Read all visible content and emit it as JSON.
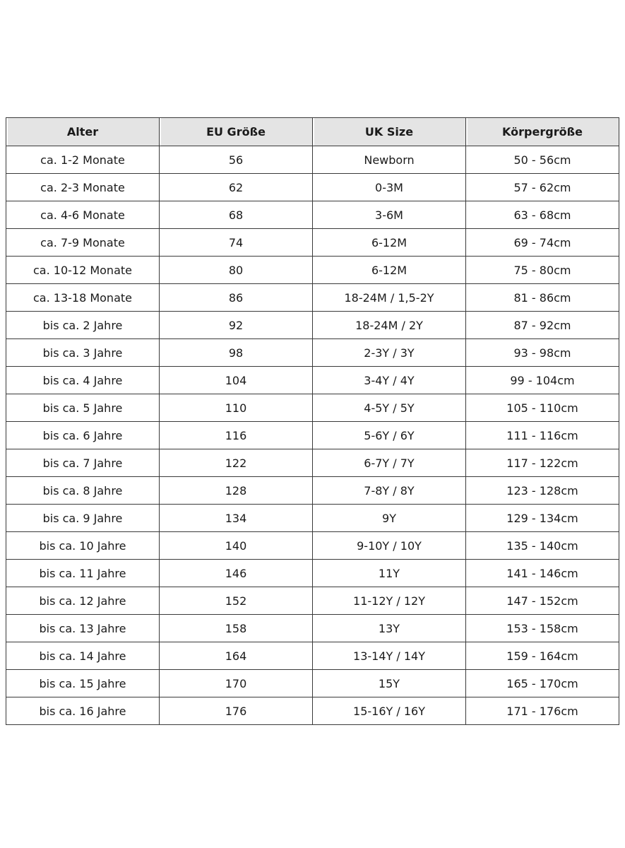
{
  "headers": [
    "Alter",
    "EU Größe",
    "UK Size",
    "Körpergröße"
  ],
  "rows": [
    [
      "ca. 1-2 Monate",
      "56",
      "Newborn",
      "50 - 56cm"
    ],
    [
      "ca. 2-3 Monate",
      "62",
      "0-3M",
      "57 - 62cm"
    ],
    [
      "ca. 4-6 Monate",
      "68",
      "3-6M",
      "63 - 68cm"
    ],
    [
      "ca. 7-9 Monate",
      "74",
      "6-12M",
      "69 - 74cm"
    ],
    [
      "ca. 10-12 Monate",
      "80",
      "6-12M",
      "75 - 80cm"
    ],
    [
      "ca. 13-18 Monate",
      "86",
      "18-24M / 1,5-2Y",
      "81 - 86cm"
    ],
    [
      "bis ca. 2 Jahre",
      "92",
      "18-24M / 2Y",
      "87 - 92cm"
    ],
    [
      "bis ca. 3 Jahre",
      "98",
      "2-3Y / 3Y",
      "93 - 98cm"
    ],
    [
      "bis ca. 4 Jahre",
      "104",
      "3-4Y / 4Y",
      "99 - 104cm"
    ],
    [
      "bis ca. 5 Jahre",
      "110",
      "4-5Y / 5Y",
      "105 - 110cm"
    ],
    [
      "bis ca. 6 Jahre",
      "116",
      "5-6Y / 6Y",
      "111 - 116cm"
    ],
    [
      "bis ca. 7 Jahre",
      "122",
      "6-7Y / 7Y",
      "117 - 122cm"
    ],
    [
      "bis ca. 8 Jahre",
      "128",
      "7-8Y / 8Y",
      "123 - 128cm"
    ],
    [
      "bis ca. 9 Jahre",
      "134",
      "9Y",
      "129 - 134cm"
    ],
    [
      "bis ca. 10 Jahre",
      "140",
      "9-10Y / 10Y",
      "135 - 140cm"
    ],
    [
      "bis ca. 11 Jahre",
      "146",
      "11Y",
      "141 - 146cm"
    ],
    [
      "bis ca. 12 Jahre",
      "152",
      "11-12Y / 12Y",
      "147 - 152cm"
    ],
    [
      "bis ca. 13 Jahre",
      "158",
      "13Y",
      "153 - 158cm"
    ],
    [
      "bis ca. 14 Jahre",
      "164",
      "13-14Y / 14Y",
      "159 - 164cm"
    ],
    [
      "bis ca. 15 Jahre",
      "170",
      "15Y",
      "165 - 170cm"
    ],
    [
      "bis ca. 16 Jahre",
      "176",
      "15-16Y / 16Y",
      "171 - 176cm"
    ]
  ]
}
